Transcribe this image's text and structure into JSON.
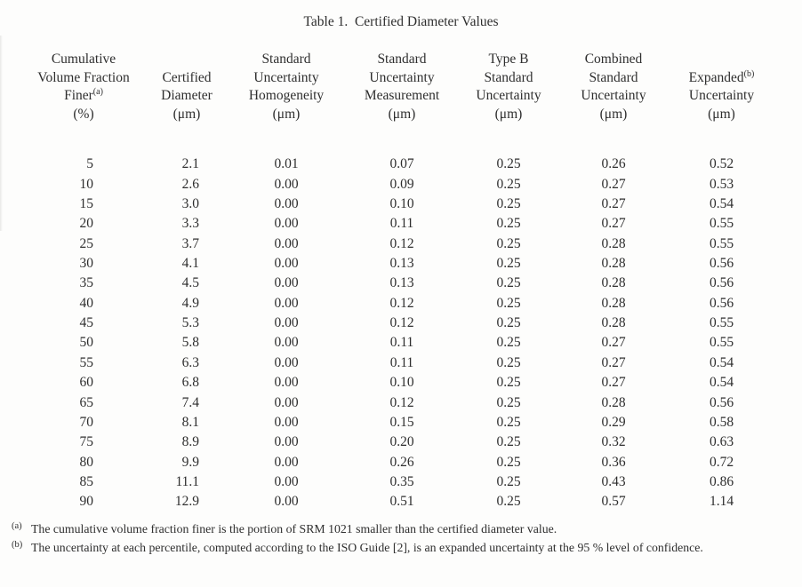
{
  "title": "Table 1.  Certified Diameter Values",
  "table": {
    "columns": [
      {
        "id": "cumulative-volume-fraction-finer",
        "lines": [
          "Cumulative",
          "Volume Fraction",
          {
            "text": "Finer",
            "sup": "(a)"
          },
          "(%)"
        ]
      },
      {
        "id": "certified-diameter",
        "lines": [
          "Certified",
          "Diameter",
          "(μm)"
        ]
      },
      {
        "id": "standard-uncertainty-homogeneity",
        "lines": [
          "Standard",
          "Uncertainty",
          "Homogeneity",
          "(μm)"
        ]
      },
      {
        "id": "standard-uncertainty-measurement",
        "lines": [
          "Standard",
          "Uncertainty",
          "Measurement",
          "(μm)"
        ]
      },
      {
        "id": "type-b-standard-uncertainty",
        "lines": [
          "Type B",
          "Standard",
          "Uncertainty",
          "(μm)"
        ]
      },
      {
        "id": "combined-standard-uncertainty",
        "lines": [
          "Combined",
          "Standard",
          "Uncertainty",
          "(μm)"
        ]
      },
      {
        "id": "expanded-uncertainty",
        "lines": [
          {
            "text": "Expanded",
            "sup": "(b)"
          },
          "Uncertainty",
          "(μm)"
        ]
      }
    ],
    "rows": [
      [
        "5",
        "2.1",
        "0.01",
        "0.07",
        "0.25",
        "0.26",
        "0.52"
      ],
      [
        "10",
        "2.6",
        "0.00",
        "0.09",
        "0.25",
        "0.27",
        "0.53"
      ],
      [
        "15",
        "3.0",
        "0.00",
        "0.10",
        "0.25",
        "0.27",
        "0.54"
      ],
      [
        "20",
        "3.3",
        "0.00",
        "0.11",
        "0.25",
        "0.27",
        "0.55"
      ],
      [
        "25",
        "3.7",
        "0.00",
        "0.12",
        "0.25",
        "0.28",
        "0.55"
      ],
      [
        "30",
        "4.1",
        "0.00",
        "0.13",
        "0.25",
        "0.28",
        "0.56"
      ],
      [
        "35",
        "4.5",
        "0.00",
        "0.13",
        "0.25",
        "0.28",
        "0.56"
      ],
      [
        "40",
        "4.9",
        "0.00",
        "0.12",
        "0.25",
        "0.28",
        "0.56"
      ],
      [
        "45",
        "5.3",
        "0.00",
        "0.12",
        "0.25",
        "0.28",
        "0.55"
      ],
      [
        "50",
        "5.8",
        "0.00",
        "0.11",
        "0.25",
        "0.27",
        "0.55"
      ],
      [
        "55",
        "6.3",
        "0.00",
        "0.11",
        "0.25",
        "0.27",
        "0.54"
      ],
      [
        "60",
        "6.8",
        "0.00",
        "0.10",
        "0.25",
        "0.27",
        "0.54"
      ],
      [
        "65",
        "7.4",
        "0.00",
        "0.12",
        "0.25",
        "0.28",
        "0.56"
      ],
      [
        "70",
        "8.1",
        "0.00",
        "0.15",
        "0.25",
        "0.29",
        "0.58"
      ],
      [
        "75",
        "8.9",
        "0.00",
        "0.20",
        "0.25",
        "0.32",
        "0.63"
      ],
      [
        "80",
        "9.9",
        "0.00",
        "0.26",
        "0.25",
        "0.36",
        "0.72"
      ],
      [
        "85",
        "11.1",
        "0.00",
        "0.35",
        "0.25",
        "0.43",
        "0.86"
      ],
      [
        "90",
        "12.9",
        "0.00",
        "0.51",
        "0.25",
        "0.57",
        "1.14"
      ]
    ]
  },
  "footnotes": [
    {
      "id": "a",
      "marker": "(a)",
      "text": "The cumulative volume fraction finer is the portion of SRM 1021 smaller than the certified diameter value."
    },
    {
      "id": "b",
      "marker": "(b)",
      "text": "The uncertainty at each percentile, computed according to the ISO Guide [2], is an expanded uncertainty at the 95 % level of confidence."
    }
  ],
  "colors": {
    "background": "#fdfdfc",
    "text": "#2e2e2e"
  }
}
